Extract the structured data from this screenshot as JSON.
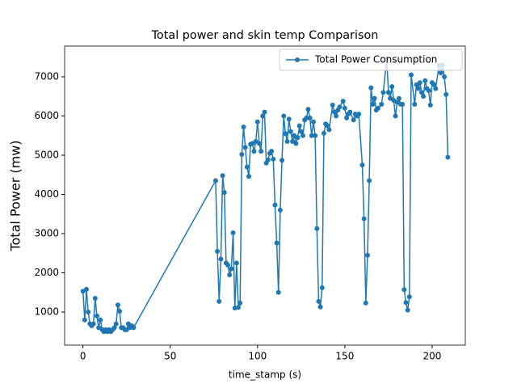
{
  "chart_data": {
    "type": "line",
    "title": "Total power and skin temp Comparison",
    "x_label": "time_stamp (s)",
    "y_label": "Total Power (mw)",
    "legend_position": "upper right",
    "xlim": [
      -10.5,
      219
    ],
    "ylim": [
      155,
      7784
    ],
    "xticks": [
      0,
      50,
      100,
      150,
      200
    ],
    "yticks": [
      1000,
      2000,
      3000,
      4000,
      5000,
      6000,
      7000
    ],
    "x": [
      0,
      1,
      2,
      3,
      4,
      5,
      6,
      7,
      8,
      9,
      10,
      11,
      12,
      13,
      14,
      15,
      16,
      17,
      18,
      19,
      20,
      21,
      22,
      23,
      24,
      25,
      26,
      27,
      28,
      29,
      76,
      77,
      78,
      79,
      80,
      81,
      82,
      83,
      84,
      85,
      86,
      87,
      88,
      89,
      90,
      91,
      92,
      93,
      94,
      95,
      96,
      97,
      98,
      99,
      100,
      101,
      102,
      103,
      104,
      105,
      106,
      107,
      108,
      109,
      110,
      111,
      112,
      113,
      114,
      115,
      116,
      117,
      118,
      119,
      120,
      121,
      122,
      123,
      124,
      125,
      126,
      127,
      128,
      129,
      130,
      131,
      132,
      133,
      134,
      135,
      136,
      137,
      138,
      139,
      140,
      141,
      143,
      144,
      145,
      146,
      147,
      149,
      150,
      151,
      152,
      153,
      155,
      156,
      157,
      158,
      160,
      161,
      162,
      163,
      164,
      165,
      166,
      167,
      168,
      169,
      171,
      172,
      174,
      175,
      176,
      177,
      178,
      179,
      180,
      181,
      182,
      183,
      184,
      185,
      186,
      187,
      188,
      190,
      191,
      192,
      193,
      194,
      195,
      196,
      197,
      198,
      199,
      200,
      201,
      202,
      204,
      205,
      206,
      207,
      208,
      209
    ],
    "series": [
      {
        "name": "Total Power Consumption",
        "color": "#1f77b4",
        "values": [
          1530,
          800,
          1580,
          1000,
          700,
          650,
          700,
          1350,
          900,
          600,
          800,
          550,
          500,
          550,
          500,
          550,
          500,
          550,
          600,
          700,
          1180,
          1020,
          600,
          600,
          550,
          550,
          700,
          600,
          650,
          600,
          4350,
          2550,
          1270,
          2350,
          4480,
          4050,
          2250,
          2200,
          1950,
          2100,
          3020,
          1100,
          2250,
          1120,
          1230,
          5020,
          5720,
          5200,
          4700,
          4460,
          5280,
          5300,
          5100,
          5350,
          5850,
          5300,
          5100,
          6000,
          6100,
          4800,
          4880,
          5050,
          5100,
          4900,
          3730,
          2760,
          1500,
          3600,
          4870,
          6000,
          5550,
          5350,
          5920,
          5600,
          5350,
          5500,
          5300,
          5450,
          5750,
          5600,
          5500,
          5900,
          5950,
          6170,
          5950,
          5500,
          5850,
          5500,
          3130,
          1270,
          1130,
          1620,
          5560,
          5800,
          5750,
          5650,
          6280,
          6100,
          6000,
          6150,
          6230,
          6380,
          6200,
          5950,
          6050,
          6100,
          5900,
          6050,
          6000,
          6050,
          4750,
          3380,
          1230,
          2450,
          4350,
          6720,
          6300,
          6450,
          6150,
          6200,
          6300,
          6600,
          7450,
          6600,
          6450,
          6750,
          6400,
          6000,
          6350,
          6450,
          6300,
          6300,
          1570,
          1240,
          1050,
          1390,
          7050,
          6300,
          6800,
          6700,
          6850,
          6600,
          6500,
          6900,
          6700,
          6650,
          6280,
          6850,
          6800,
          6700,
          7300,
          7100,
          7300,
          7000,
          6550,
          4950
        ]
      }
    ]
  }
}
